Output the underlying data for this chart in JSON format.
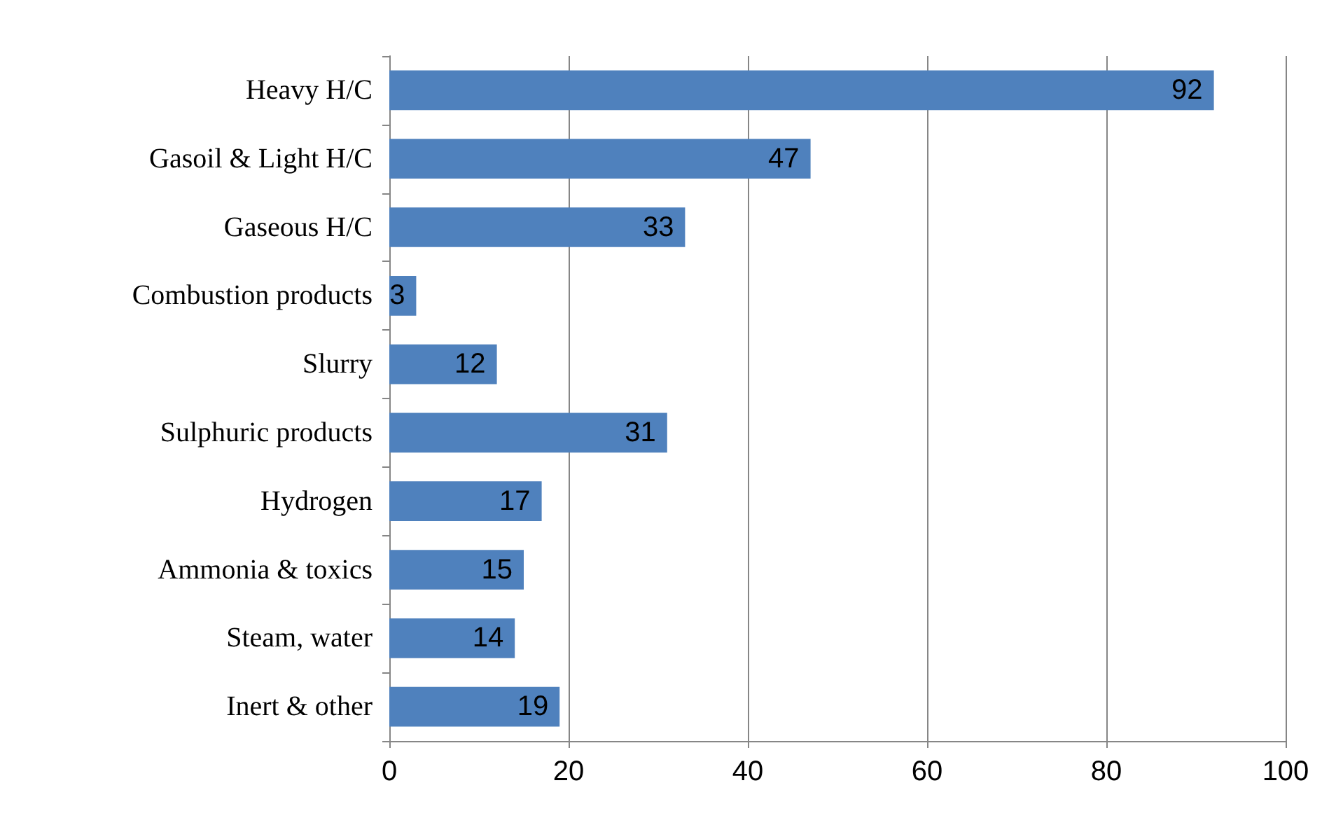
{
  "chart_data": {
    "type": "bar",
    "orientation": "horizontal",
    "categories": [
      "Heavy H/C",
      "Gasoil & Light H/C",
      "Gaseous H/C",
      "Combustion products",
      "Slurry",
      "Sulphuric products",
      "Hydrogen",
      "Ammonia & toxics",
      "Steam, water",
      "Inert & other"
    ],
    "values": [
      92,
      47,
      33,
      3,
      12,
      31,
      17,
      15,
      14,
      19
    ],
    "color": "#4f81bd",
    "xlim": [
      0,
      100
    ],
    "xticks": [
      0,
      20,
      40,
      60,
      80,
      100
    ],
    "grid": "x",
    "data_labels": true
  }
}
